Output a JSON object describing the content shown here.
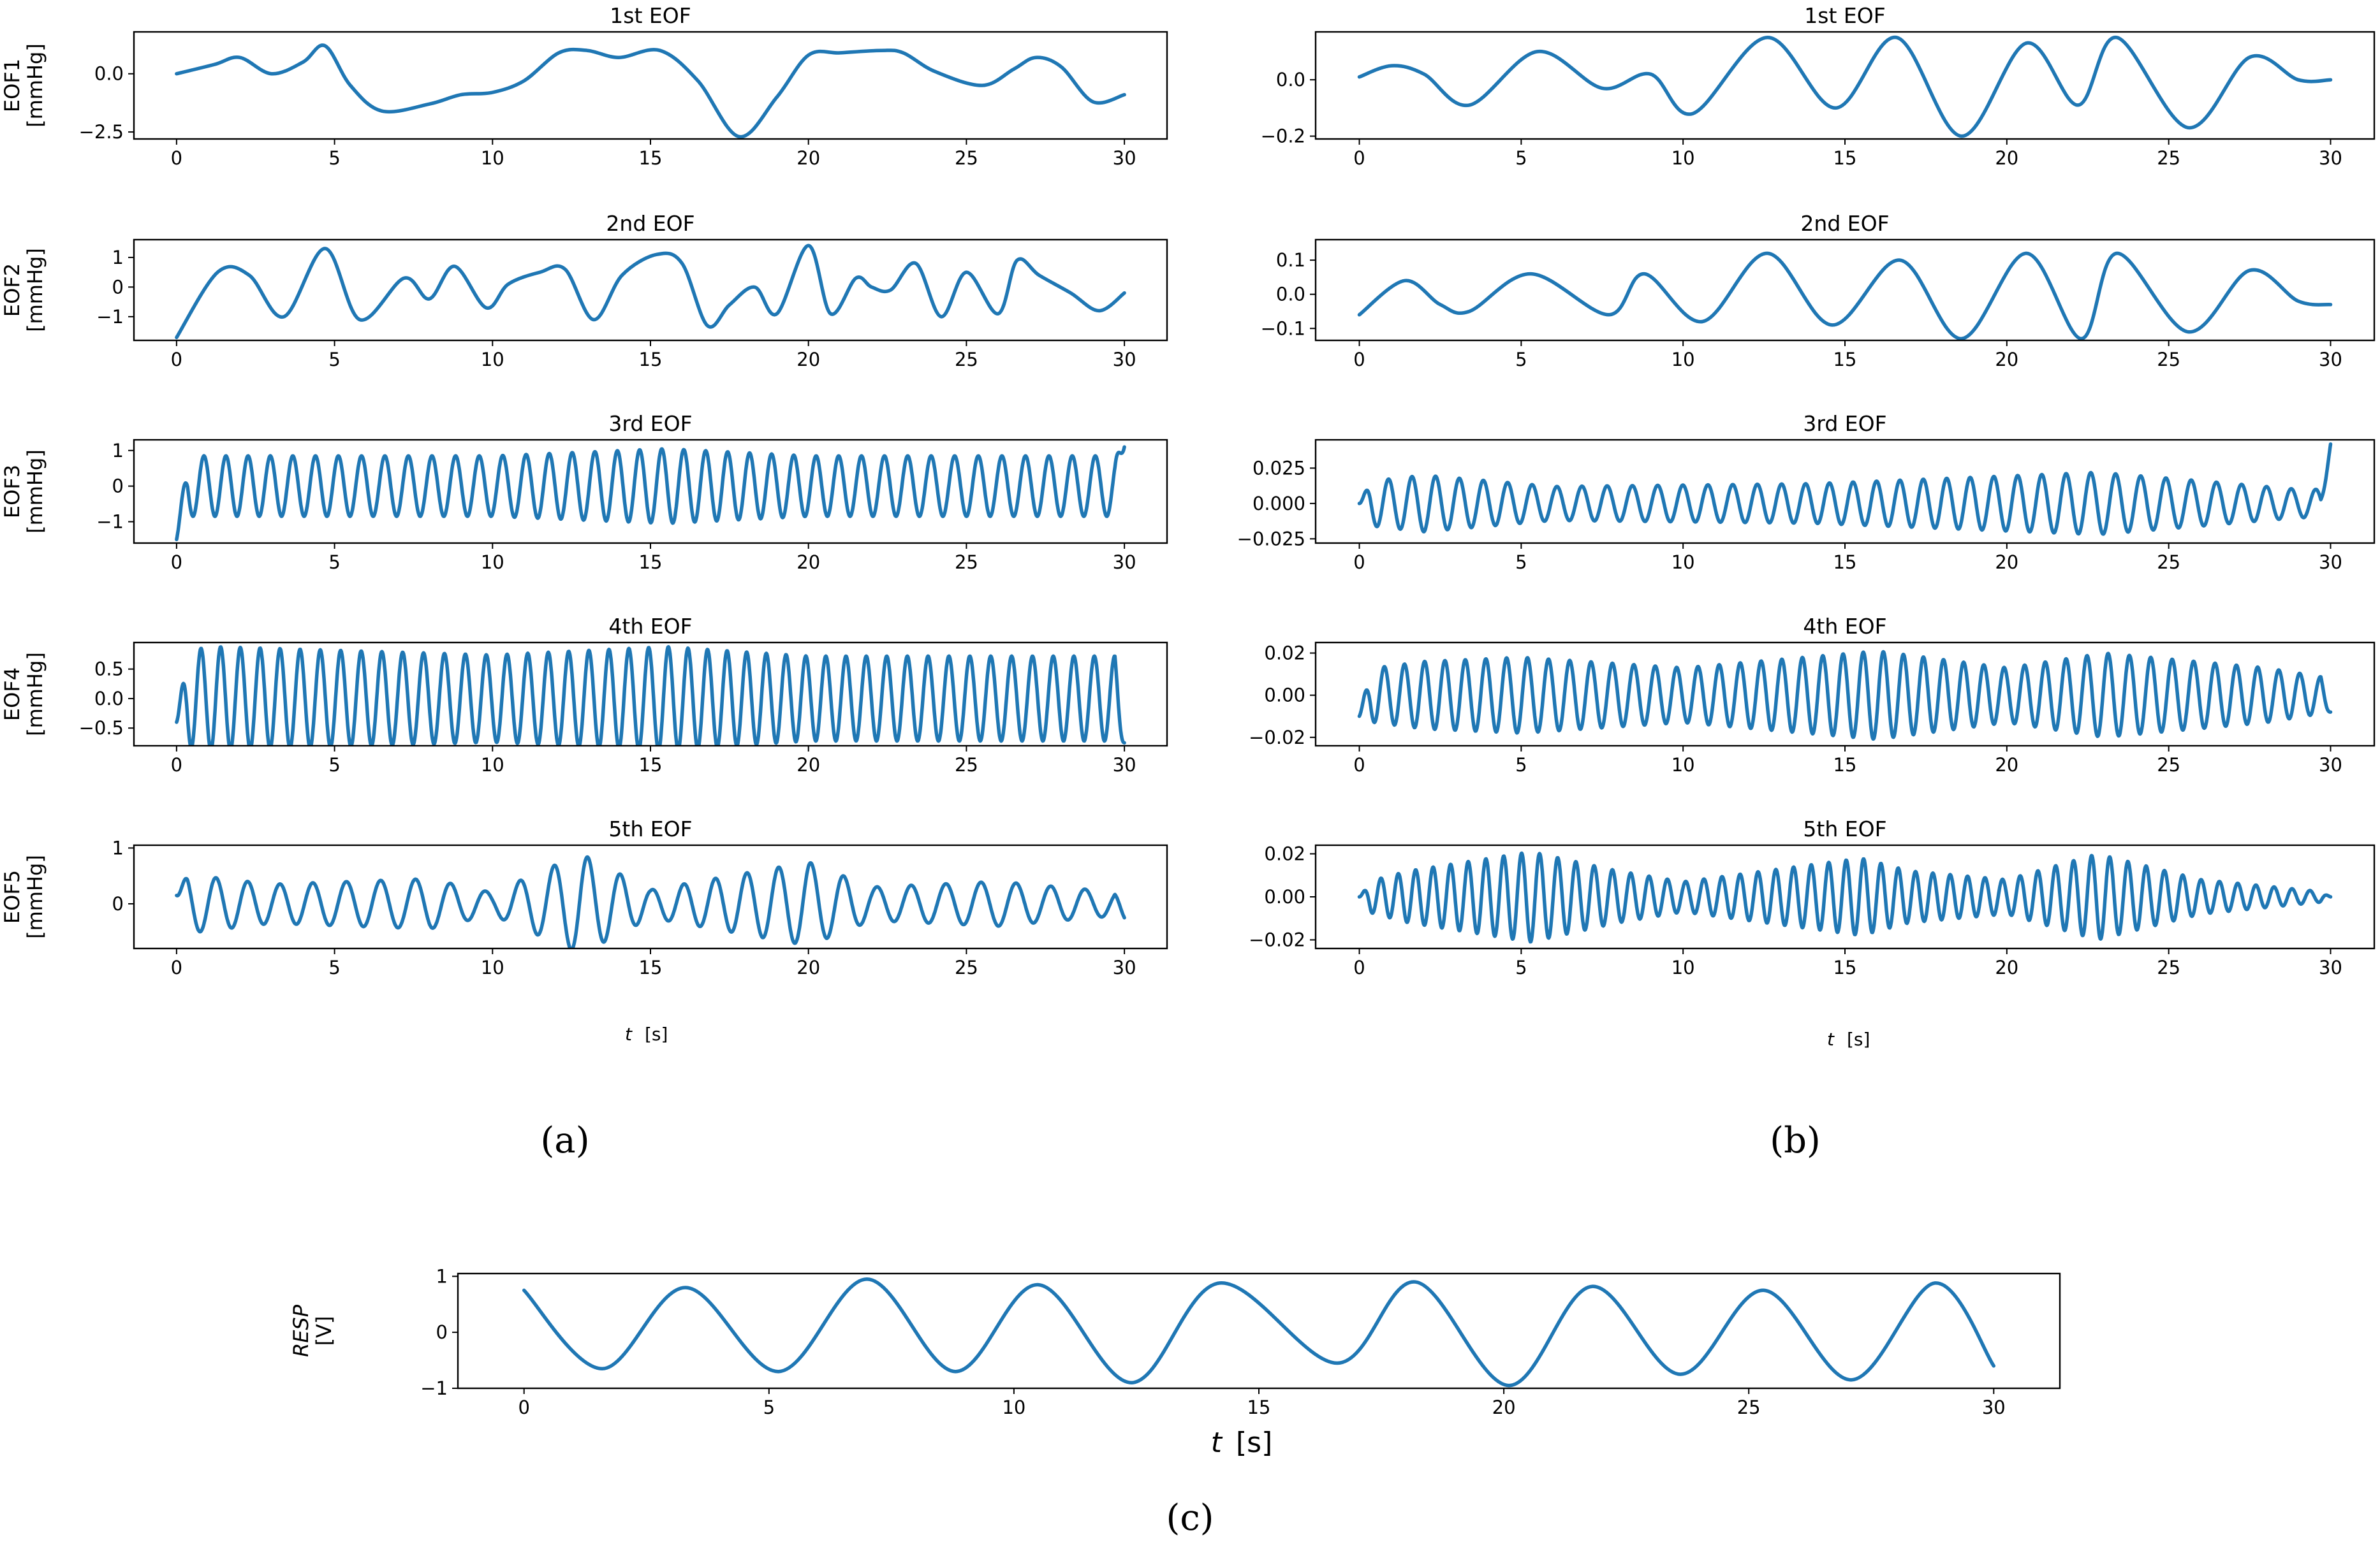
{
  "panel_labels": [
    "(a)",
    "(b)",
    "(c)"
  ],
  "xlabels": {
    "a": {
      "var": "t",
      "unit": "[s]"
    },
    "b": {
      "var": "t",
      "unit": "[s]"
    },
    "c": {
      "var": "t",
      "unit": "[s]"
    }
  },
  "chart_data": [
    {
      "id": "a1",
      "type": "line",
      "title": "1st EOF",
      "ylabel": "EOF1 [mmHg]",
      "xlim": [
        0,
        30
      ],
      "ylim": [
        -2.8,
        1.8
      ],
      "xticks": [
        0,
        5,
        10,
        15,
        20,
        25,
        30
      ],
      "yticks": [
        0.0,
        -2.5
      ],
      "ytick_labels": [
        "0.0",
        "−2.5"
      ],
      "series": [
        {
          "x": [
            0,
            1.2,
            2,
            3,
            4,
            4.7,
            5.5,
            6.5,
            8,
            9,
            10,
            11,
            12.1,
            13,
            14,
            15.3,
            16.5,
            17.8,
            19,
            20,
            21,
            22.3,
            23,
            24,
            25.5,
            26.5,
            27.2,
            28,
            29,
            30
          ],
          "y": [
            0.0,
            0.4,
            0.7,
            0.0,
            0.5,
            1.2,
            -0.5,
            -1.6,
            -1.3,
            -0.9,
            -0.8,
            -0.3,
            0.9,
            1.0,
            0.7,
            1.0,
            -0.3,
            -2.7,
            -1.0,
            0.8,
            0.9,
            1.0,
            0.9,
            0.1,
            -0.5,
            0.2,
            0.7,
            0.3,
            -1.2,
            -0.9
          ]
        }
      ]
    },
    {
      "id": "a2",
      "type": "line",
      "title": "2nd EOF",
      "ylabel": "EOF2 [mmHg]",
      "xlim": [
        0,
        30
      ],
      "ylim": [
        -1.8,
        1.6
      ],
      "xticks": [
        0,
        5,
        10,
        15,
        20,
        25,
        30
      ],
      "yticks": [
        1,
        0,
        -1
      ],
      "ytick_labels": [
        "1",
        "0",
        "−1"
      ],
      "series": [
        {
          "x": [
            0,
            1.3,
            2.3,
            3.4,
            4.7,
            5.8,
            7.2,
            8,
            8.8,
            9.8,
            10.5,
            11.5,
            12.3,
            13.2,
            14.1,
            15.2,
            16,
            16.8,
            17.5,
            18.3,
            19.0,
            20,
            20.7,
            21.5,
            22,
            22.6,
            23.4,
            24.2,
            25,
            26,
            26.6,
            27.3,
            28.3,
            29.2,
            30
          ],
          "y": [
            -1.7,
            0.5,
            0.4,
            -1.0,
            1.3,
            -1.1,
            0.3,
            -0.4,
            0.7,
            -0.7,
            0.1,
            0.5,
            0.6,
            -1.1,
            0.4,
            1.1,
            0.8,
            -1.3,
            -0.6,
            0.0,
            -0.9,
            1.4,
            -0.9,
            0.3,
            0.0,
            -0.1,
            0.8,
            -1.0,
            0.5,
            -0.9,
            0.9,
            0.4,
            -0.2,
            -0.8,
            -0.2
          ]
        }
      ]
    },
    {
      "id": "a3",
      "type": "line",
      "title": "3rd EOF",
      "ylabel": "EOF3 [mmHg]",
      "xlim": [
        0,
        30
      ],
      "ylim": [
        -1.6,
        1.3
      ],
      "xticks": [
        0,
        5,
        10,
        15,
        20,
        25,
        30
      ],
      "yticks": [
        1,
        0,
        -1
      ],
      "ytick_labels": [
        "1",
        "0",
        "−1"
      ],
      "series": [
        {
          "kind": "osc",
          "period": 0.72,
          "amps": [
            [
              0,
              0.85
            ],
            [
              10,
              0.85
            ],
            [
              15.5,
              1.05
            ],
            [
              20,
              0.85
            ],
            [
              30,
              0.85
            ]
          ],
          "start": -1.5,
          "end": 1.1
        }
      ]
    },
    {
      "id": "a4",
      "type": "line",
      "title": "4th EOF",
      "ylabel": "EOF4 [mmHg]",
      "xlim": [
        0,
        30
      ],
      "ylim": [
        -0.8,
        0.95
      ],
      "xticks": [
        0,
        5,
        10,
        15,
        20,
        25,
        30
      ],
      "yticks": [
        0.5,
        0.0,
        -0.5
      ],
      "ytick_labels": [
        "0.5",
        "0.0",
        "−0.5"
      ],
      "series": [
        {
          "kind": "osc",
          "period": 0.64,
          "amps": [
            [
              0,
              0.8
            ],
            [
              1.2,
              0.88
            ],
            [
              10,
              0.74
            ],
            [
              15.5,
              0.88
            ],
            [
              20,
              0.72
            ],
            [
              30,
              0.72
            ]
          ],
          "start": -0.4,
          "end": -0.75
        }
      ]
    },
    {
      "id": "a5",
      "type": "line",
      "title": "5th EOF",
      "ylabel": "EOF5 [mmHg]",
      "xlim": [
        0,
        30
      ],
      "ylim": [
        -0.8,
        1.05
      ],
      "xticks": [
        0,
        5,
        10,
        15,
        20,
        25,
        30
      ],
      "yticks": [
        1,
        0
      ],
      "ytick_labels": [
        "1",
        "0"
      ],
      "series": [
        {
          "kind": "osc",
          "period": 1.05,
          "amps": [
            [
              0,
              0.55
            ],
            [
              3,
              0.35
            ],
            [
              8,
              0.45
            ],
            [
              10,
              0.2
            ],
            [
              12.8,
              0.9
            ],
            [
              15,
              0.25
            ],
            [
              20,
              0.75
            ],
            [
              22,
              0.3
            ],
            [
              26,
              0.4
            ],
            [
              30,
              0.2
            ]
          ],
          "start": 0.15,
          "end": -0.25
        }
      ]
    },
    {
      "id": "b1",
      "type": "line",
      "title": "1st EOF",
      "ylabel": "",
      "xlim": [
        0,
        30
      ],
      "ylim": [
        -0.21,
        0.17
      ],
      "xticks": [
        0,
        5,
        10,
        15,
        20,
        25,
        30
      ],
      "yticks": [
        0.0,
        -0.2
      ],
      "ytick_labels": [
        "0.0",
        "−0.2"
      ],
      "series": [
        {
          "x": [
            0,
            1,
            2,
            3.4,
            5.5,
            7.5,
            9,
            10.3,
            12.6,
            14.7,
            16.6,
            18.6,
            20.6,
            22.2,
            23.4,
            25.6,
            27.5,
            29,
            30
          ],
          "y": [
            0.01,
            0.05,
            0.02,
            -0.09,
            0.1,
            -0.03,
            0.02,
            -0.12,
            0.15,
            -0.1,
            0.15,
            -0.2,
            0.13,
            -0.09,
            0.15,
            -0.17,
            0.08,
            0.0,
            0.0
          ]
        }
      ]
    },
    {
      "id": "b2",
      "type": "line",
      "title": "2nd EOF",
      "ylabel": "",
      "xlim": [
        0,
        30
      ],
      "ylim": [
        -0.135,
        0.16
      ],
      "xticks": [
        0,
        5,
        10,
        15,
        20,
        25,
        30
      ],
      "yticks": [
        0.1,
        0.0,
        -0.1
      ],
      "ytick_labels": [
        "0.1",
        "0.0",
        "−0.1"
      ],
      "series": [
        {
          "x": [
            0,
            1.4,
            2.5,
            3.4,
            5.3,
            7.7,
            8.8,
            10.6,
            12.6,
            14.6,
            16.7,
            18.6,
            20.6,
            22.3,
            23.4,
            25.6,
            27.5,
            29,
            30
          ],
          "y": [
            -0.06,
            0.04,
            -0.03,
            -0.05,
            0.06,
            -0.06,
            0.06,
            -0.08,
            0.12,
            -0.09,
            0.1,
            -0.13,
            0.12,
            -0.13,
            0.12,
            -0.11,
            0.07,
            -0.02,
            -0.03
          ]
        }
      ]
    },
    {
      "id": "b3",
      "type": "line",
      "title": "3rd EOF",
      "ylabel": "",
      "xlim": [
        0,
        30
      ],
      "ylim": [
        -0.028,
        0.045
      ],
      "xticks": [
        0,
        5,
        10,
        15,
        20,
        25,
        30
      ],
      "yticks": [
        0.025,
        0.0,
        -0.025
      ],
      "ytick_labels": [
        "0.025",
        "0.000",
        "−0.025"
      ],
      "series": [
        {
          "kind": "osc",
          "period": 0.75,
          "amps": [
            [
              0,
              0.015
            ],
            [
              2,
              0.02
            ],
            [
              6,
              0.012
            ],
            [
              14,
              0.014
            ],
            [
              22.8,
              0.022
            ],
            [
              26,
              0.016
            ],
            [
              29,
              0.01
            ]
          ],
          "start": 0.0,
          "end": 0.042
        }
      ]
    },
    {
      "id": "b4",
      "type": "line",
      "title": "4th EOF",
      "ylabel": "",
      "xlim": [
        0,
        30
      ],
      "ylim": [
        -0.024,
        0.025
      ],
      "xticks": [
        0,
        5,
        10,
        15,
        20,
        25,
        30
      ],
      "yticks": [
        0.02,
        0.0,
        -0.02
      ],
      "ytick_labels": [
        "0.02",
        "0.00",
        "−0.02"
      ],
      "series": [
        {
          "kind": "osc",
          "period": 0.64,
          "amps": [
            [
              0,
              0.012
            ],
            [
              2,
              0.016
            ],
            [
              5,
              0.018
            ],
            [
              10,
              0.013
            ],
            [
              16,
              0.021
            ],
            [
              20,
              0.013
            ],
            [
              23,
              0.02
            ],
            [
              28,
              0.013
            ],
            [
              30,
              0.008
            ]
          ],
          "start": -0.01,
          "end": -0.008
        }
      ]
    },
    {
      "id": "b5",
      "type": "line",
      "title": "5th EOF",
      "ylabel": "",
      "xlim": [
        0,
        30
      ],
      "ylim": [
        -0.024,
        0.024
      ],
      "xticks": [
        0,
        5,
        10,
        15,
        20,
        25,
        30
      ],
      "yticks": [
        0.02,
        0.0,
        -0.02
      ],
      "ytick_labels": [
        "0.02",
        "0.00",
        "−0.02"
      ],
      "series": [
        {
          "kind": "osc",
          "period": 0.55,
          "amps": [
            [
              0,
              0.006
            ],
            [
              1.5,
              0.012
            ],
            [
              5.3,
              0.021
            ],
            [
              8,
              0.012
            ],
            [
              10,
              0.007
            ],
            [
              15.5,
              0.018
            ],
            [
              17,
              0.012
            ],
            [
              20,
              0.008
            ],
            [
              22.8,
              0.02
            ],
            [
              26,
              0.008
            ],
            [
              30,
              0.002
            ]
          ],
          "start": 0.0,
          "end": 0.0
        }
      ]
    },
    {
      "id": "c",
      "type": "line",
      "title": "",
      "ylabel": "RESP [V]",
      "xlim": [
        0,
        30
      ],
      "ylim": [
        -1.0,
        1.05
      ],
      "xticks": [
        0,
        5,
        10,
        15,
        20,
        25,
        30
      ],
      "yticks": [
        1,
        0,
        -1
      ],
      "ytick_labels": [
        "1",
        "0",
        "−1"
      ],
      "series": [
        {
          "x": [
            0,
            1.6,
            3.3,
            5.2,
            7.0,
            8.8,
            10.5,
            12.4,
            14.2,
            16.6,
            18.2,
            20.1,
            21.8,
            23.6,
            25.3,
            27.1,
            28.8,
            30
          ],
          "y": [
            0.75,
            -0.65,
            0.8,
            -0.7,
            0.95,
            -0.7,
            0.85,
            -0.9,
            0.88,
            -0.55,
            0.9,
            -0.95,
            0.82,
            -0.75,
            0.75,
            -0.85,
            0.88,
            -0.6
          ]
        }
      ]
    }
  ]
}
